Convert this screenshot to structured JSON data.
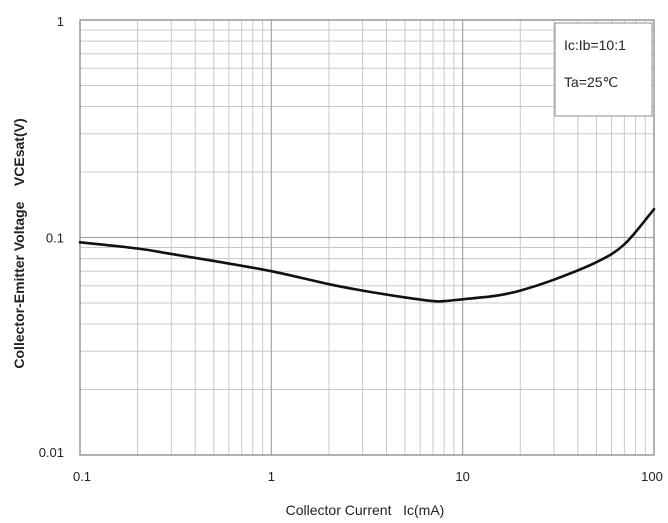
{
  "chart_data": {
    "type": "line",
    "x_scale": "log",
    "y_scale": "log",
    "xlim": [
      0.1,
      100
    ],
    "ylim": [
      0.01,
      1
    ],
    "grid": true,
    "xlabel": "Collector Current   Ic(mA)",
    "ylabel": "Collector-Emitter Voltage    VCEsat(V)",
    "x_ticks": [
      0.1,
      1,
      10,
      100
    ],
    "x_tick_labels": [
      "0.1",
      "1",
      "10",
      "100"
    ],
    "y_ticks": [
      0.01,
      0.1,
      1
    ],
    "y_tick_labels": [
      "0.01",
      "0.1",
      "1"
    ],
    "annotations": [
      "Ic:Ib=10:1",
      "Ta=25℃"
    ],
    "legend_position": "top-right",
    "series": [
      {
        "x": [
          0.1,
          0.2,
          0.3,
          0.5,
          1,
          2,
          3,
          5,
          7,
          8,
          10,
          15,
          20,
          30,
          50,
          70,
          100
        ],
        "y": [
          0.095,
          0.089,
          0.084,
          0.078,
          0.07,
          0.061,
          0.057,
          0.053,
          0.051,
          0.051,
          0.052,
          0.054,
          0.057,
          0.064,
          0.077,
          0.093,
          0.135
        ]
      }
    ],
    "colors": {
      "line": "#111111",
      "major_grid": "#a6a6a6",
      "minor_grid": "#c8c8c8",
      "axis": "#8c8c8c"
    }
  }
}
